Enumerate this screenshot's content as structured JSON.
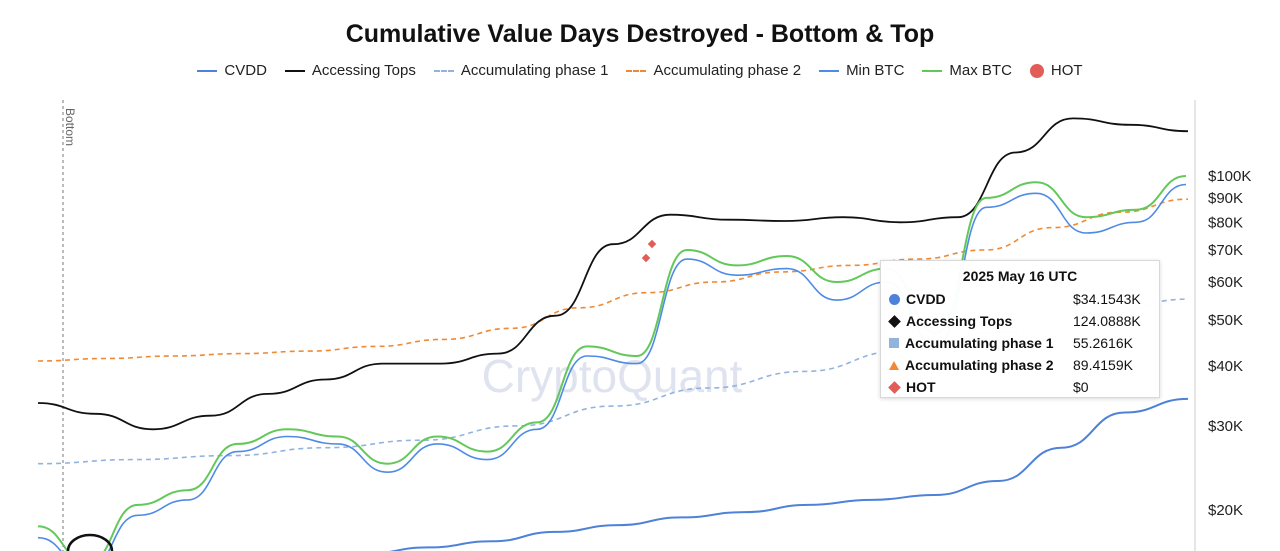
{
  "chart_data": {
    "type": "line",
    "title": "Cumulative Value Days Destroyed - Bottom & Top",
    "y_scale": "log",
    "y_ticks": [
      {
        "value": 100000,
        "label": "$100K"
      },
      {
        "value": 90000,
        "label": "$90K"
      },
      {
        "value": 80000,
        "label": "$80K"
      },
      {
        "value": 70000,
        "label": "$70K"
      },
      {
        "value": 60000,
        "label": "$60K"
      },
      {
        "value": 50000,
        "label": "$50K"
      },
      {
        "value": 40000,
        "label": "$40K"
      },
      {
        "value": 30000,
        "label": "$30K"
      },
      {
        "value": 20000,
        "label": "$20K"
      }
    ],
    "annotation": "Bottom",
    "watermark": "CryptoQuant",
    "legend": [
      {
        "name": "CVDD",
        "color": "#4e82d9",
        "style": "solid"
      },
      {
        "name": "Accessing Tops",
        "color": "#111111",
        "style": "solid"
      },
      {
        "name": "Accumulating phase 1",
        "color": "#93b3df",
        "style": "dashed"
      },
      {
        "name": "Accumulating phase 2",
        "color": "#ef8a33",
        "style": "dashed"
      },
      {
        "name": "Min BTC",
        "color": "#4f8be6",
        "style": "solid"
      },
      {
        "name": "Max BTC",
        "color": "#63c85a",
        "style": "solid"
      },
      {
        "name": "HOT",
        "color": "#e25d57",
        "style": "dot"
      }
    ],
    "series": [
      {
        "name": "Accessing Tops",
        "values": [
          33500,
          31800,
          29500,
          31500,
          35000,
          37500,
          40500,
          40500,
          42500,
          51000,
          72000,
          83000,
          81000,
          80500,
          82000,
          80000,
          82000,
          112000,
          132000,
          128000,
          124088.8
        ]
      },
      {
        "name": "Accumulating phase 2",
        "values": [
          41000,
          41500,
          42000,
          42500,
          43000,
          44000,
          45500,
          48000,
          53000,
          57000,
          60000,
          63000,
          65000,
          67000,
          70000,
          78000,
          84000,
          89415.9
        ]
      },
      {
        "name": "Accumulating phase 1",
        "values": [
          25000,
          25500,
          26000,
          27000,
          28000,
          30000,
          33000,
          36000,
          39000,
          43000,
          47000,
          51000,
          55261.6
        ]
      },
      {
        "name": "CVDD",
        "values": [
          15600,
          15700,
          15800,
          16000,
          16200,
          16700,
          17200,
          18000,
          18600,
          19300,
          19800,
          20500,
          21000,
          21500,
          23000,
          27000,
          32000,
          34154.3
        ]
      },
      {
        "name": "Max BTC",
        "values": [
          18500,
          15500,
          20500,
          22000,
          27500,
          29500,
          28500,
          25000,
          28500,
          26500,
          30500,
          44000,
          42000,
          70000,
          65000,
          68000,
          60000,
          64000,
          47000,
          90000,
          97000,
          82000,
          85000,
          100000
        ]
      },
      {
        "name": "Min BTC",
        "values": [
          17500,
          15000,
          19500,
          21000,
          26500,
          28500,
          27500,
          24000,
          27500,
          25500,
          29500,
          42000,
          40500,
          67000,
          62000,
          64000,
          55000,
          60000,
          44000,
          86000,
          92000,
          76000,
          80000,
          96000
        ]
      }
    ]
  },
  "tooltip": {
    "date": "2025 May 16 UTC",
    "rows": [
      {
        "label": "CVDD",
        "value": "$34.1543K",
        "marker": "circle",
        "color": "#4e82d9"
      },
      {
        "label": "Accessing Tops",
        "value": "124.0888K",
        "marker": "diamond",
        "color": "#111111"
      },
      {
        "label": "Accumulating phase 1",
        "value": "55.2616K",
        "marker": "square",
        "color": "#93b3df"
      },
      {
        "label": "Accumulating phase 2",
        "value": "89.4159K",
        "marker": "triangle",
        "color": "#ef8a33"
      },
      {
        "label": "HOT",
        "value": "$0",
        "marker": "diamond",
        "color": "#e25d57"
      }
    ]
  }
}
